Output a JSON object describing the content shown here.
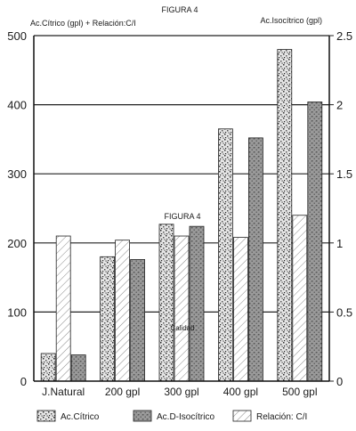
{
  "chart_data": {
    "type": "bar",
    "title": "FIGURA 4",
    "inner_label": "FIGURA 4",
    "left_axis_title": "Ac.Cítrico (gpl) + Relación:C/I",
    "right_axis_title": "Ac.Isocítrico (gpl)",
    "xlabel": "Calidad",
    "categories": [
      "J.Natural",
      "200 gpl",
      "300 gpl",
      "400 gpl",
      "500 gpl"
    ],
    "yticks_left": [
      "0",
      "100",
      "200",
      "300",
      "400",
      "500"
    ],
    "yticks_right": [
      "0",
      "0.5",
      "1",
      "1.5",
      "2",
      "2.5"
    ],
    "ylim_left": [
      0,
      500
    ],
    "ylim_right": [
      0,
      2.5
    ],
    "grid": true,
    "legend_position": "bottom",
    "series": [
      {
        "name": "Ac.Cítrico",
        "axis": "left",
        "values": [
          40,
          180,
          227,
          365,
          480
        ]
      },
      {
        "name": "Relación: C/I",
        "axis": "right",
        "values": [
          1.05,
          1.02,
          1.05,
          1.04,
          1.2
        ]
      },
      {
        "name": "Ac.D-Isocítrico",
        "axis": "right",
        "values": [
          0.19,
          0.88,
          1.12,
          1.76,
          2.02
        ]
      }
    ]
  }
}
